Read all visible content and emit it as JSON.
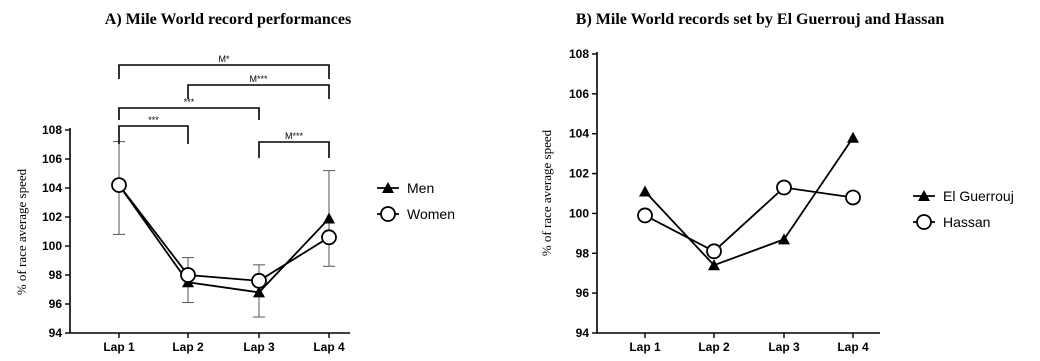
{
  "chart_data": [
    {
      "type": "line",
      "title": "A) Mile World record performances",
      "xlabel": "",
      "ylabel": "% of race average speed",
      "categories": [
        "Lap 1",
        "Lap 2",
        "Lap 3",
        "Lap 4"
      ],
      "ylim": [
        94,
        108
      ],
      "yticks": [
        94,
        96,
        98,
        100,
        102,
        104,
        106,
        108
      ],
      "grid": false,
      "legend_position": "right",
      "series": [
        {
          "name": "Men",
          "marker": "filled-triangle",
          "values": [
            104.2,
            97.5,
            96.8,
            101.9
          ]
        },
        {
          "name": "Women",
          "marker": "open-circle",
          "values": [
            104.2,
            98.0,
            97.6,
            100.6
          ]
        }
      ],
      "error_bars": [
        {
          "category": "Lap 1",
          "low": 100.8,
          "high": 107.2
        },
        {
          "category": "Lap 2",
          "low": 96.1,
          "high": 99.2
        },
        {
          "category": "Lap 3",
          "low": 95.1,
          "high": 98.7
        },
        {
          "category": "Lap 4",
          "low": 98.6,
          "high": 105.2
        }
      ],
      "significance": [
        {
          "from": "Lap 1",
          "to": "Lap 2",
          "label": "***"
        },
        {
          "from": "Lap 3",
          "to": "Lap 4",
          "label": "M***"
        },
        {
          "from": "Lap 1",
          "to": "Lap 3",
          "label": "***"
        },
        {
          "from": "Lap 2",
          "to": "Lap 4",
          "label": "M***"
        },
        {
          "from": "Lap 1",
          "to": "Lap 4",
          "label": "M*"
        }
      ]
    },
    {
      "type": "line",
      "title": "B) Mile World records set by El Guerrouj and Hassan",
      "xlabel": "",
      "ylabel": "% of race average speed",
      "categories": [
        "Lap 1",
        "Lap 2",
        "Lap 3",
        "Lap 4"
      ],
      "ylim": [
        94,
        108
      ],
      "yticks": [
        94,
        96,
        98,
        100,
        102,
        104,
        106,
        108
      ],
      "grid": false,
      "legend_position": "right",
      "series": [
        {
          "name": "El Guerrouj",
          "marker": "filled-triangle",
          "values": [
            101.1,
            97.4,
            98.7,
            103.8
          ]
        },
        {
          "name": "Hassan",
          "marker": "open-circle",
          "values": [
            99.9,
            98.1,
            101.3,
            100.8
          ]
        }
      ]
    }
  ]
}
